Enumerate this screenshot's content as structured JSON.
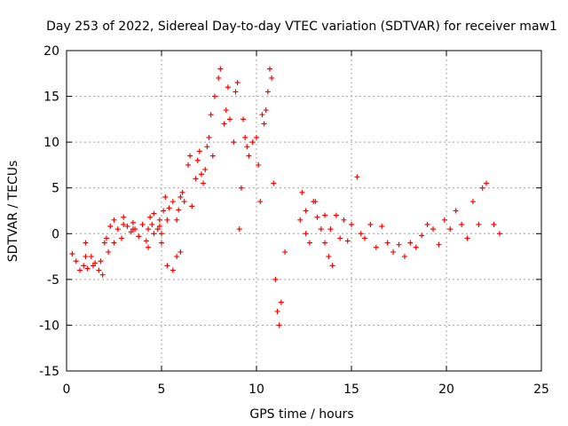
{
  "chart_data": {
    "type": "scatter",
    "title": "Day 253 of 2022, Sidereal Day-to-day VTEC variation (SDTVAR) for receiver maw1",
    "xlabel": "GPS time / hours",
    "ylabel": "SDTVAR / TECUs",
    "xlim": [
      0,
      25
    ],
    "ylim": [
      -15,
      20
    ],
    "xticks": [
      0,
      5,
      10,
      15,
      20,
      25
    ],
    "yticks": [
      -15,
      -10,
      -5,
      0,
      5,
      10,
      15,
      20
    ],
    "grid": true,
    "marker": "+",
    "color": "#ff0000",
    "series": [
      {
        "name": "SDTVAR",
        "x": [
          0.3,
          0.5,
          0.7,
          0.9,
          1.0,
          1.1,
          1.3,
          1.5,
          1.7,
          1.9,
          2.0,
          2.1,
          2.3,
          2.5,
          2.7,
          2.9,
          3.0,
          3.2,
          3.4,
          3.5,
          3.6,
          3.8,
          4.0,
          4.2,
          4.3,
          4.4,
          4.5,
          4.6,
          4.8,
          4.9,
          5.0,
          5.1,
          5.2,
          5.3,
          5.4,
          5.6,
          5.8,
          5.9,
          6.0,
          6.1,
          6.2,
          6.4,
          6.5,
          6.6,
          6.8,
          6.9,
          7.0,
          7.1,
          7.2,
          7.4,
          7.5,
          7.6,
          7.8,
          8.0,
          8.1,
          8.3,
          8.4,
          8.5,
          8.6,
          8.8,
          8.9,
          9.0,
          9.1,
          9.2,
          9.3,
          9.4,
          9.5,
          9.6,
          9.8,
          10.0,
          10.1,
          10.2,
          10.3,
          10.4,
          10.5,
          10.6,
          10.7,
          10.8,
          10.9,
          11.0,
          11.1,
          11.2,
          11.3,
          11.5,
          12.3,
          12.4,
          12.6,
          12.8,
          13.0,
          13.2,
          13.4,
          13.6,
          13.8,
          14.0,
          14.2,
          14.4,
          14.6,
          14.8,
          15.0,
          15.3,
          15.5,
          15.7,
          16.0,
          16.3,
          16.6,
          16.9,
          17.2,
          17.5,
          17.8,
          18.1,
          18.4,
          18.7,
          19.0,
          19.3,
          19.6,
          19.9,
          20.2,
          20.5,
          20.8,
          21.1,
          21.4,
          21.7,
          21.9,
          22.1,
          22.5,
          22.8,
          5.0,
          5.3,
          5.6,
          5.8,
          6.0,
          4.3,
          4.6,
          4.9,
          2.5,
          3.0,
          3.5,
          1.0,
          1.4,
          1.8,
          2.2,
          7.3,
          7.7,
          12.6,
          13.1,
          13.6,
          13.9
        ],
        "y": [
          -2.2,
          -3.0,
          -4.0,
          -3.5,
          -1.0,
          -3.8,
          -2.5,
          -3.2,
          -4.0,
          -4.5,
          -1.0,
          -0.5,
          0.8,
          1.5,
          0.5,
          -0.5,
          1.8,
          0.8,
          0.2,
          1.2,
          0.5,
          -0.3,
          1.0,
          -0.8,
          0.5,
          1.8,
          1.0,
          2.2,
          0.5,
          1.5,
          0.0,
          2.5,
          4.0,
          1.5,
          2.8,
          3.5,
          1.5,
          2.6,
          4.0,
          4.5,
          3.5,
          7.5,
          8.5,
          3.0,
          6.0,
          8.0,
          9.0,
          6.5,
          5.5,
          9.5,
          10.5,
          13.0,
          15.0,
          17.0,
          18.0,
          12.0,
          13.5,
          16.0,
          12.5,
          10.0,
          15.5,
          16.5,
          0.5,
          5.0,
          12.5,
          10.5,
          9.5,
          8.5,
          10.0,
          10.5,
          7.5,
          3.5,
          13.0,
          12.0,
          13.5,
          15.5,
          18.0,
          17.0,
          5.5,
          -5.0,
          -8.5,
          -10.0,
          -7.5,
          -2.0,
          1.5,
          4.5,
          0.0,
          -1.0,
          3.5,
          1.8,
          0.5,
          -1.0,
          -2.5,
          -3.5,
          2.0,
          -0.5,
          1.5,
          -0.8,
          1.0,
          6.2,
          0.0,
          -0.5,
          1.0,
          -1.5,
          0.8,
          -1.0,
          -2.0,
          -1.2,
          -2.5,
          -1.0,
          -1.5,
          -0.2,
          1.0,
          0.5,
          -1.2,
          1.5,
          0.5,
          2.5,
          1.0,
          -0.5,
          3.5,
          1.0,
          5.0,
          5.5,
          1.0,
          0.0,
          -1.0,
          -3.5,
          -4.0,
          -2.5,
          -2.0,
          -1.5,
          0.0,
          0.8,
          -1.0,
          1.0,
          0.5,
          -2.5,
          -3.5,
          -3.0,
          -2.0,
          7.0,
          8.5,
          2.5,
          3.5,
          2.0,
          0.5
        ]
      }
    ]
  }
}
